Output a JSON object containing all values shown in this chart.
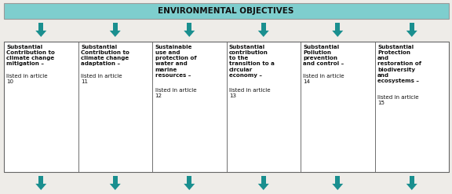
{
  "title": "ENVIRONMENTAL OBJECTIVES",
  "title_bg_color": "#7ecece",
  "title_font_color": "#111111",
  "arrow_color": "#1a8f8f",
  "box_border_color": "#666666",
  "box_bg_color": "#ffffff",
  "background_color": "#eeece8",
  "figsize": [
    5.76,
    2.47
  ],
  "dpi": 100,
  "boxes": [
    {
      "bold_text": "Substantial\nContribution to\nclimate change\nmitigation –",
      "normal_text": "listed in article\n10"
    },
    {
      "bold_text": "Substantial\nContribution to\nclimate change\nadaptation –",
      "normal_text": "listed in article\n11"
    },
    {
      "bold_text": "Sustainable\nuse and\nprotection of\nwater and\nmarine\nresources –",
      "normal_text": "listed in article\n12"
    },
    {
      "bold_text": "Substantial\ncontribution\nto the\ntransition to a\ncircular\neconomy –",
      "normal_text": "listed in article\n13"
    },
    {
      "bold_text": "Substantial\nPollution\nprevention\nand control –",
      "normal_text": "listed in article\n14"
    },
    {
      "bold_text": "Substantial\nProtection\nand\nrestoration of\nbiodiversity\nand\necosystems –",
      "normal_text": "listed in article\n15"
    }
  ]
}
